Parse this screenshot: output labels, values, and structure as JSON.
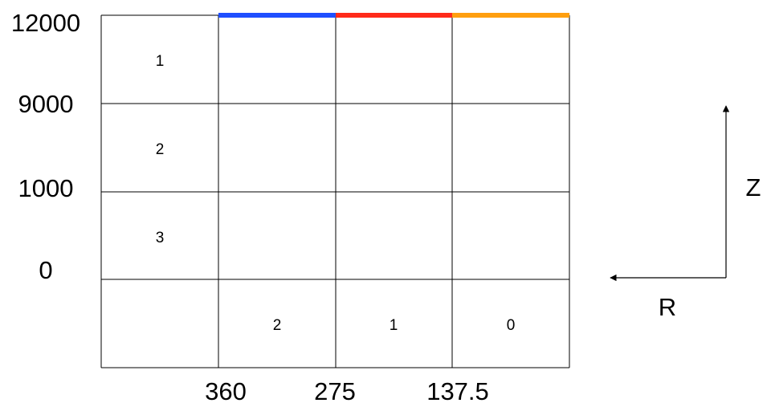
{
  "z_values": [
    "12000",
    "9000",
    "1000",
    "0"
  ],
  "r_values": [
    "360",
    "275",
    "137.5"
  ],
  "row_labels": [
    "1",
    "2",
    "3"
  ],
  "column_labels": [
    "2",
    "1",
    "0"
  ],
  "top_band_colors": [
    "#1f4fff",
    "#ff2a1a",
    "#ff9f0f"
  ],
  "directions": {
    "z_label": "Z",
    "r_label": "R"
  }
}
